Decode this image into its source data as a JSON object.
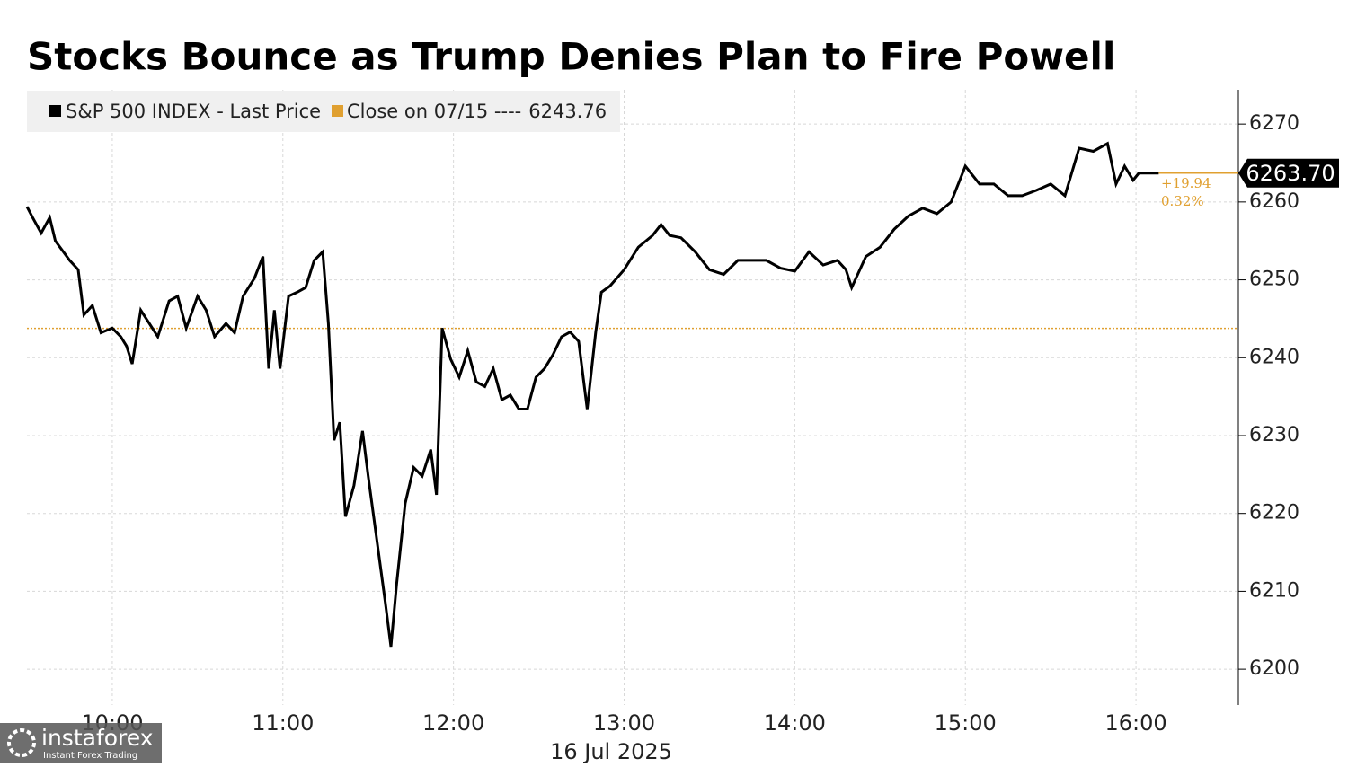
{
  "chart_data": {
    "type": "line",
    "title": "Stocks Bounce as Trump Denies Plan to Fire Powell",
    "xlabel": "16 Jul 2025",
    "x": [
      570,
      572,
      575,
      578,
      580,
      585,
      588,
      590,
      593,
      596,
      600,
      603,
      605,
      607,
      610,
      613,
      616,
      620,
      623,
      626,
      630,
      633,
      636,
      640,
      643,
      646,
      650,
      653,
      655,
      657,
      659,
      662,
      665,
      668,
      671,
      674,
      676,
      678,
      680,
      682,
      685,
      688,
      690,
      693,
      696,
      698,
      700,
      703,
      706,
      709,
      712,
      714,
      716,
      719,
      722,
      725,
      728,
      731,
      734,
      737,
      740,
      743,
      746,
      749,
      752,
      755,
      758,
      761,
      764,
      767,
      770,
      772,
      775,
      780,
      785,
      790,
      793,
      796,
      800,
      805,
      810,
      815,
      820,
      825,
      830,
      835,
      840,
      845,
      850,
      855,
      858,
      860,
      865,
      870,
      875,
      880,
      885,
      890,
      895,
      900,
      905,
      910,
      915,
      920,
      925,
      930,
      935,
      940,
      945,
      950,
      953,
      956,
      959,
      961,
      968
    ],
    "series": [
      {
        "name": "S&P 500 INDEX - Last Price",
        "color": "#000000",
        "values": [
          6259.4,
          6258,
          6256,
          6258,
          6255,
          6252.5,
          6251.3,
          6245.5,
          6246.7,
          6243.2,
          6243.8,
          6242.7,
          6241.5,
          6239.2,
          6246.1,
          6244.4,
          6242.7,
          6247.3,
          6247.9,
          6243.8,
          6247.9,
          6246.1,
          6242.7,
          6244.4,
          6243.2,
          6247.9,
          6250.2,
          6253.0,
          6238.6,
          6246.1,
          6238.6,
          6247.9,
          6248.4,
          6249.0,
          6252.5,
          6253.6,
          6244.4,
          6229.4,
          6231.7,
          6219.6,
          6223.6,
          6230.6,
          6224.8,
          6216.7,
          6208.6,
          6202.9,
          6211.0,
          6221.3,
          6225.9,
          6224.8,
          6228.2,
          6222.4,
          6243.8,
          6239.8,
          6237.5,
          6240.9,
          6236.9,
          6236.3,
          6238.6,
          6234.6,
          6235.2,
          6233.4,
          6233.4,
          6237.5,
          6238.6,
          6240.4,
          6242.7,
          6243.3,
          6242.1,
          6233.4,
          6243.3,
          6248.4,
          6249.2,
          6251.3,
          6254.2,
          6255.7,
          6257.1,
          6255.7,
          6255.4,
          6253.6,
          6251.3,
          6250.7,
          6252.5,
          6252.5,
          6252.5,
          6251.5,
          6251.1,
          6253.6,
          6251.9,
          6252.5,
          6251.3,
          6249.0,
          6253.0,
          6254.2,
          6256.5,
          6258.2,
          6259.2,
          6258.5,
          6260.0,
          6264.6,
          6262.3,
          6262.3,
          6260.8,
          6260.8,
          6261.5,
          6262.3,
          6260.8,
          6266.9,
          6266.5,
          6267.5,
          6262.3,
          6264.6,
          6262.8,
          6263.7,
          6263.7
        ]
      }
    ],
    "reference_line": {
      "label": "Close on 07/15 ----",
      "value": 6243.76,
      "color": "#e0a030"
    },
    "last_price": {
      "value": 6263.7,
      "label": "6263.70"
    },
    "change_label": "+19.94",
    "change_pct_label": "0.32%",
    "xlim": [
      570,
      996
    ],
    "ylim": [
      6195.4,
      6274.4
    ],
    "xticks": [
      {
        "value": 600,
        "label": "10:00"
      },
      {
        "value": 660,
        "label": "11:00"
      },
      {
        "value": 720,
        "label": "12:00"
      },
      {
        "value": 780,
        "label": "13:00"
      },
      {
        "value": 840,
        "label": "14:00"
      },
      {
        "value": 900,
        "label": "15:00"
      },
      {
        "value": 960,
        "label": "16:00"
      }
    ],
    "yticks": [
      6200,
      6210,
      6220,
      6230,
      6240,
      6250,
      6260,
      6270
    ],
    "grid": true
  },
  "watermark": {
    "brand": "instaforex",
    "tagline": "Instant Forex Trading"
  }
}
